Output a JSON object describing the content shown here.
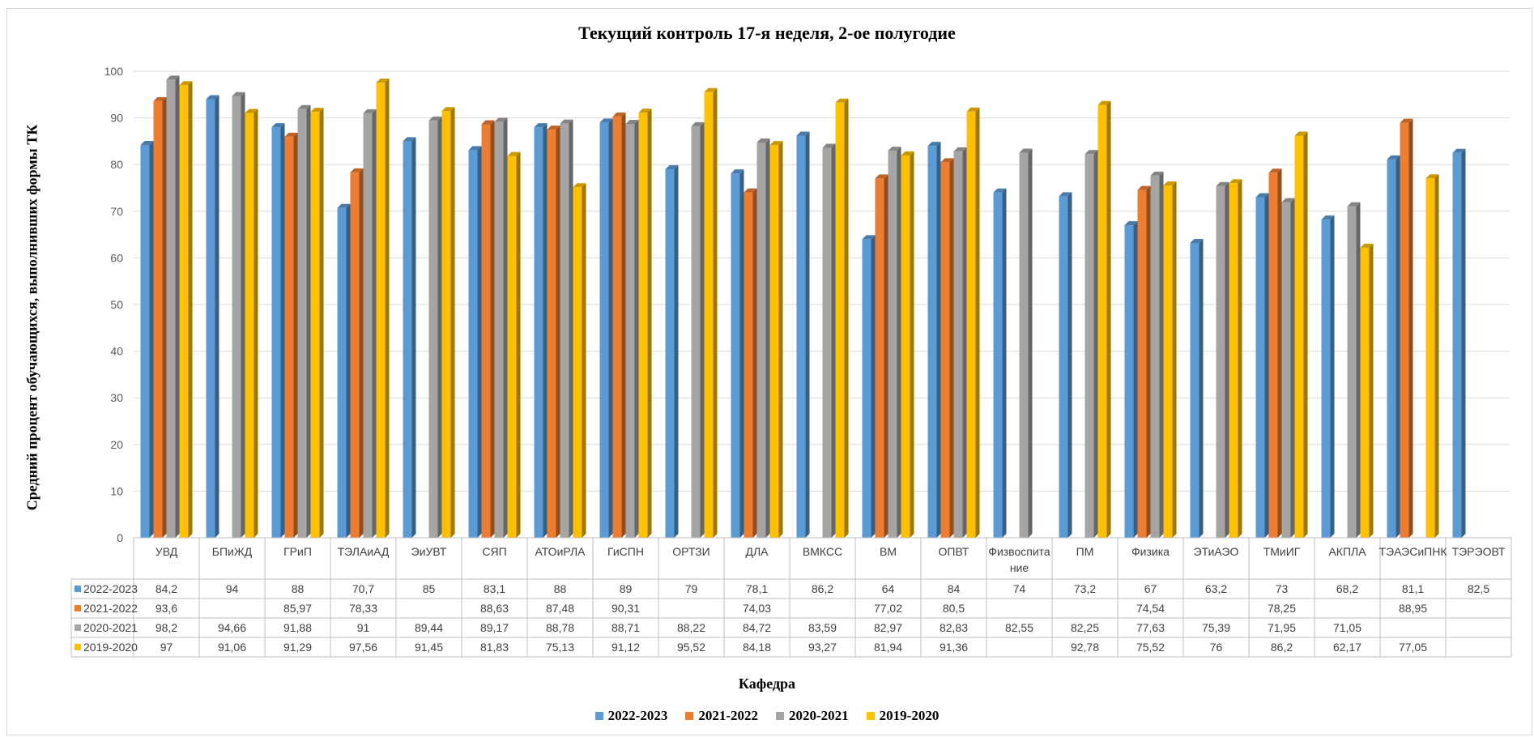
{
  "chart_data": {
    "type": "bar",
    "title": "Текущий контроль 17-я неделя, 2-ое полугодие",
    "ylabel": "Средний процент  обучающихся, выполнивших формы ТК",
    "xlabel": "Кафедра",
    "ylim": [
      0,
      100
    ],
    "yticks": [
      0,
      10,
      20,
      30,
      40,
      50,
      60,
      70,
      80,
      90,
      100
    ],
    "grid": true,
    "legend_position": "bottom",
    "has_data_table": true,
    "categories": [
      "УВД",
      "БПиЖД",
      "ГРиП",
      "ТЭЛАиАД",
      "ЭиУВТ",
      "СЯП",
      "АТОиРЛА",
      "ГиСПН",
      "ОРТЗИ",
      "ДЛА",
      "ВМКСС",
      "ВМ",
      "ОПВТ",
      "Физвоспитание",
      "ПМ",
      "Физика",
      "ЭТиАЭО",
      "ТМиИГ",
      "АКПЛА",
      "ТЭАЭСиПНК",
      "ТЭРЭОВТ"
    ],
    "series": [
      {
        "name": "2022-2023",
        "color": "#5b9bd5",
        "values": [
          84.2,
          94,
          88,
          70.7,
          85,
          83.1,
          88,
          89,
          79,
          78.1,
          86.2,
          64,
          84,
          74,
          73.2,
          67,
          63.2,
          73,
          68.2,
          81.1,
          82.5
        ],
        "labels": [
          "84,2",
          "94",
          "88",
          "70,7",
          "85",
          "83,1",
          "88",
          "89",
          "79",
          "78,1",
          "86,2",
          "64",
          "84",
          "74",
          "73,2",
          "67",
          "63,2",
          "73",
          "68,2",
          "81,1",
          "82,5"
        ]
      },
      {
        "name": "2021-2022",
        "color": "#ed7d31",
        "values": [
          93.6,
          null,
          85.97,
          78.33,
          null,
          88.63,
          87.48,
          90.31,
          null,
          74.03,
          null,
          77.02,
          80.5,
          null,
          null,
          74.54,
          null,
          78.25,
          null,
          88.95,
          null
        ],
        "labels": [
          "93,6",
          "",
          "85,97",
          "78,33",
          "",
          "88,63",
          "87,48",
          "90,31",
          "",
          "74,03",
          "",
          "77,02",
          "80,5",
          "",
          "",
          "74,54",
          "",
          "78,25",
          "",
          "88,95",
          ""
        ]
      },
      {
        "name": "2020-2021",
        "color": "#a5a5a5",
        "values": [
          98.2,
          94.66,
          91.88,
          91,
          89.44,
          89.17,
          88.78,
          88.71,
          88.22,
          84.72,
          83.59,
          82.97,
          82.83,
          82.55,
          82.25,
          77.63,
          75.39,
          71.95,
          71.05,
          null,
          null
        ],
        "labels": [
          "98,2",
          "94,66",
          "91,88",
          "91",
          "89,44",
          "89,17",
          "88,78",
          "88,71",
          "88,22",
          "84,72",
          "83,59",
          "82,97",
          "82,83",
          "82,55",
          "82,25",
          "77,63",
          "75,39",
          "71,95",
          "71,05",
          "",
          ""
        ]
      },
      {
        "name": "2019-2020",
        "color": "#ffc000",
        "values": [
          97,
          91.06,
          91.29,
          97.56,
          91.45,
          81.83,
          75.13,
          91.12,
          95.52,
          84.18,
          93.27,
          81.94,
          91.36,
          null,
          92.78,
          75.52,
          76,
          86.2,
          62.17,
          77.05,
          null
        ],
        "labels": [
          "97",
          "91,06",
          "91,29",
          "97,56",
          "91,45",
          "81,83",
          "75,13",
          "91,12",
          "95,52",
          "84,18",
          "93,27",
          "81,94",
          "91,36",
          "",
          "92,78",
          "75,52",
          "76",
          "86,2",
          "62,17",
          "77,05",
          ""
        ]
      }
    ]
  }
}
